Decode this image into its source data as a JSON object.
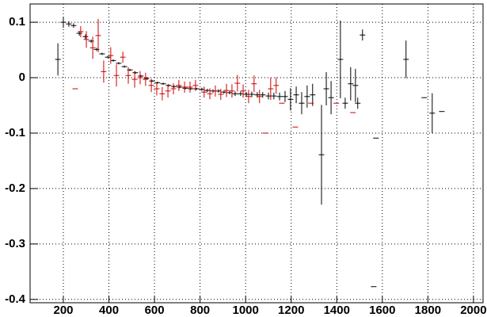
{
  "chart_data": {
    "type": "errorbar",
    "xlim": [
      54,
      2042
    ],
    "ylim": [
      -0.406,
      0.133
    ],
    "xticks": [
      200,
      400,
      600,
      800,
      1000,
      1200,
      1400,
      1600,
      1800,
      2000
    ],
    "yticks": [
      0.1,
      0,
      -0.1,
      -0.2,
      -0.3,
      -0.4
    ],
    "grid": true,
    "series": [
      {
        "color": "#000000",
        "x": [
          176,
          200,
          224,
          245,
          270,
          297,
          322,
          346,
          370,
          395,
          419,
          443,
          468,
          492,
          516,
          540,
          565,
          589,
          613,
          638,
          662,
          686,
          711,
          735,
          759,
          784,
          808,
          832,
          857,
          881,
          905,
          930,
          954,
          978,
          1003,
          1027,
          1051,
          1075,
          1100,
          1124,
          1149,
          1173,
          1197,
          1222,
          1246,
          1270,
          1294,
          1333,
          1354,
          1375,
          1416,
          1437,
          1461,
          1482,
          1492,
          1513,
          1562,
          1572,
          1704,
          1784,
          1819,
          1861
        ],
        "values": [
          0.033,
          0.1,
          0.097,
          0.094,
          0.08,
          0.074,
          0.066,
          0.051,
          0.043,
          0.037,
          0.031,
          0.026,
          0.02,
          0.014,
          0.009,
          0.003,
          -0.001,
          -0.006,
          -0.009,
          -0.011,
          -0.014,
          -0.016,
          -0.017,
          -0.019,
          -0.02,
          -0.02,
          -0.021,
          -0.023,
          -0.024,
          -0.024,
          -0.026,
          -0.027,
          -0.029,
          -0.029,
          -0.03,
          -0.03,
          -0.031,
          -0.031,
          -0.033,
          -0.033,
          -0.034,
          -0.034,
          -0.039,
          -0.031,
          -0.046,
          -0.034,
          -0.031,
          -0.139,
          -0.02,
          -0.036,
          0.033,
          -0.046,
          -0.011,
          -0.014,
          -0.046,
          0.077,
          -0.377,
          -0.109,
          0.033,
          -0.036,
          -0.064,
          -0.061
        ],
        "errors": [
          0.029,
          0.01,
          0.005,
          0.004,
          0.004,
          0.004,
          0.003,
          0.003,
          0.002,
          0.002,
          0.002,
          0.002,
          0.002,
          0.002,
          0.002,
          0.002,
          0.002,
          0.002,
          0.002,
          0.002,
          0.002,
          0.002,
          0.002,
          0.002,
          0.002,
          0.002,
          0.003,
          0.003,
          0.003,
          0.003,
          0.003,
          0.003,
          0.004,
          0.004,
          0.004,
          0.005,
          0.005,
          0.005,
          0.006,
          0.006,
          0.007,
          0.01,
          0.02,
          0.015,
          0.02,
          0.02,
          0.02,
          0.09,
          0.03,
          0.03,
          0.07,
          0.01,
          0.03,
          0.03,
          0.01,
          0.01,
          0,
          0,
          0.034,
          0,
          0.036,
          0
        ]
      },
      {
        "color": "#cc0000",
        "x": [
          252,
          276,
          301,
          329,
          353,
          377,
          408,
          433,
          461,
          485,
          513,
          537,
          561,
          586,
          610,
          634,
          659,
          683,
          707,
          732,
          756,
          780,
          818,
          843,
          867,
          891,
          916,
          940,
          964,
          989,
          1013,
          1037,
          1061,
          1086,
          1110,
          1134,
          1159,
          1218,
          1287,
          1398,
          1471
        ],
        "values": [
          -0.02,
          0.083,
          0.069,
          0.054,
          0.076,
          0.011,
          0.04,
          0.004,
          0.037,
          0.004,
          -0.003,
          0,
          -0.003,
          -0.014,
          -0.02,
          -0.029,
          -0.024,
          -0.02,
          -0.014,
          -0.017,
          -0.017,
          -0.014,
          -0.026,
          -0.029,
          -0.024,
          -0.03,
          -0.023,
          -0.024,
          -0.01,
          -0.024,
          -0.034,
          -0.011,
          -0.034,
          -0.1,
          -0.02,
          -0.014,
          -0.046,
          -0.089,
          -0.046,
          -0.046,
          -0.063
        ],
        "errors": [
          0,
          0.01,
          0.015,
          0.02,
          0.03,
          0.02,
          0.015,
          0.02,
          0.01,
          0.015,
          0.015,
          0.012,
          0.012,
          0.012,
          0.012,
          0.012,
          0.012,
          0.01,
          0.01,
          0.01,
          0.01,
          0.01,
          0.01,
          0.01,
          0.01,
          0.01,
          0.012,
          0.012,
          0.015,
          0.012,
          0.012,
          0.015,
          0.012,
          0,
          0.02,
          0.015,
          0,
          0,
          0,
          0,
          0
        ]
      }
    ]
  }
}
